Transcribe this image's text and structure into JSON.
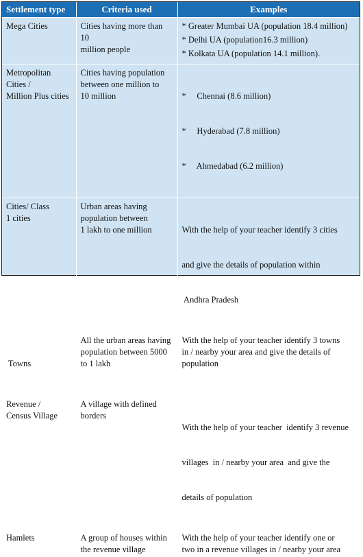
{
  "headers": [
    "Settlement type",
    "Criteria used",
    "Examples"
  ],
  "rows": [
    {
      "type": [
        "Mega Cities"
      ],
      "criteria": [
        "Cities having more than 10",
        "million people"
      ],
      "examples": [
        "* Greater Mumbai UA (population 18.4 million)",
        "* Delhi UA (population16.3 million)",
        "* Kolkata UA (population 14.1 million)."
      ]
    },
    {
      "type": [
        "Metropolitan",
        "Cities /",
        "Million Plus cities"
      ],
      "criteria": [
        "Cities having population",
        "between one million to",
        "10 million"
      ],
      "examples": [
        "*     Chennai (8.6 million)",
        "*     Hyderabad (7.8 million)",
        "*     Ahmedabad (6.2 million)"
      ]
    },
    {
      "type": [
        "Cities/ Class",
        "1 cities"
      ],
      "criteria": [
        "Urban areas having",
        "population between",
        "1 lakh to one million"
      ],
      "examples": [
        "With the help of your teacher identify 3 cities",
        "and give the details of population within",
        " Andhra Pradesh"
      ]
    },
    {
      "type": [
        " Towns"
      ],
      "criteria": [
        "All the urban areas having",
        "population between 5000",
        "to 1 lakh"
      ],
      "examples": [
        "With the help of your teacher identify 3 towns",
        "in / nearby your area and give the details of",
        "population"
      ]
    },
    {
      "type": [
        "Revenue /",
        "Census Village"
      ],
      "criteria": [
        "A village with defined",
        "borders"
      ],
      "examples": [
        "With the help of your teacher  identify 3 revenue",
        "villages  in / nearby your area  and give the",
        "details of population"
      ]
    },
    {
      "type": [
        "Hamlets"
      ],
      "criteria": [
        "A group of houses within",
        "the revenue village"
      ],
      "examples": [
        "With the help of your teacher identify one or",
        "two in a revenue villages in / nearby your area"
      ]
    }
  ]
}
